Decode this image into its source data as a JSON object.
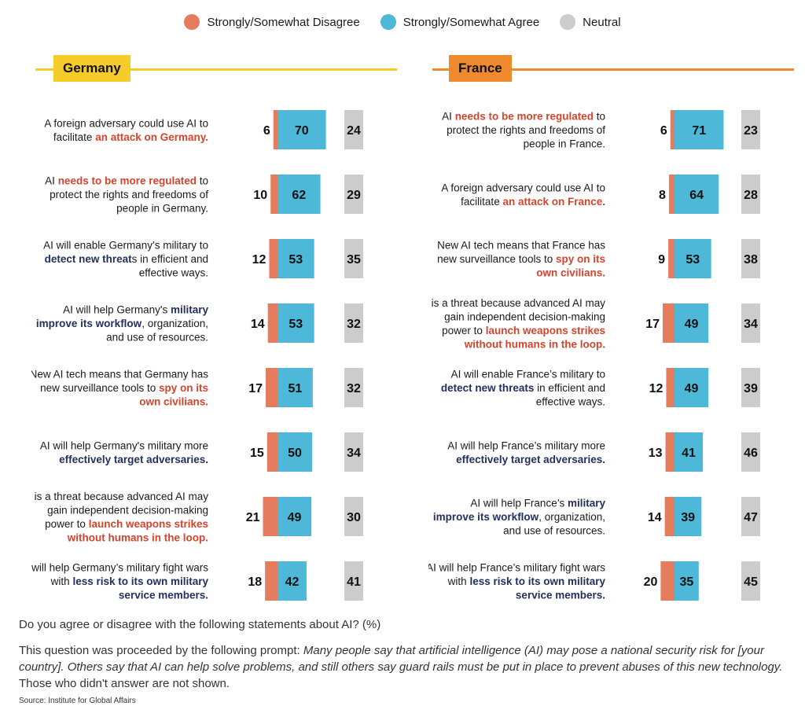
{
  "legend": [
    {
      "label": "Strongly/Somewhat Disagree",
      "color": "#e57c5d"
    },
    {
      "label": "Strongly/Somewhat Agree",
      "color": "#4db8d8"
    },
    {
      "label": "Neutral",
      "color": "#cccccc"
    }
  ],
  "colors": {
    "disagree": "#e57c5d",
    "agree": "#4db8d8",
    "neutral": "#cccccc",
    "highlight_red": "#d4452e",
    "highlight_blue": "#23305e",
    "germany_accent": "#f5cc2a",
    "france_accent": "#f08a2f"
  },
  "chart_data": [
    {
      "type": "bar",
      "title": "Germany",
      "series": [
        "Strongly/Somewhat Disagree",
        "Strongly/Somewhat Agree",
        "Neutral"
      ],
      "rows": [
        {
          "statement": [
            [
              [
                "A foreign adversary could use AI to",
                ""
              ]
            ],
            [
              [
                "facilitate ",
                ""
              ],
              [
                "an attack on Germany.",
                "r"
              ]
            ]
          ],
          "disagree": 6,
          "agree": 70,
          "neutral": 24
        },
        {
          "statement": [
            [
              [
                "AI ",
                ""
              ],
              [
                "needs to be more regulated",
                "r"
              ],
              [
                " to",
                ""
              ]
            ],
            [
              [
                "protect the rights and freedoms of",
                ""
              ]
            ],
            [
              [
                "people in Germany.",
                ""
              ]
            ]
          ],
          "disagree": 10,
          "agree": 62,
          "neutral": 29
        },
        {
          "statement": [
            [
              [
                "AI will enable Germany’s military to",
                ""
              ]
            ],
            [
              [
                "detect new threat",
                "b"
              ],
              [
                "s in efficient and",
                ""
              ]
            ],
            [
              [
                "effective ways.",
                ""
              ]
            ]
          ],
          "disagree": 12,
          "agree": 53,
          "neutral": 35
        },
        {
          "statement": [
            [
              [
                "AI will help Germany's ",
                ""
              ],
              [
                "military",
                "b"
              ]
            ],
            [
              [
                "improve its workflow",
                "b"
              ],
              [
                ", organization,",
                ""
              ]
            ],
            [
              [
                "and use of resources.",
                ""
              ]
            ]
          ],
          "disagree": 14,
          "agree": 53,
          "neutral": 32
        },
        {
          "statement": [
            [
              [
                "New AI tech means that Germany has",
                ""
              ]
            ],
            [
              [
                "new surveillance tools to ",
                ""
              ],
              [
                "spy on its",
                "r"
              ]
            ],
            [
              [
                "own civilians.",
                "r"
              ]
            ]
          ],
          "disagree": 17,
          "agree": 51,
          "neutral": 32
        },
        {
          "statement": [
            [
              [
                "AI will help Germany's military more",
                ""
              ]
            ],
            [
              [
                "effectively target adversaries.",
                "b"
              ]
            ]
          ],
          "disagree": 15,
          "agree": 50,
          "neutral": 34
        },
        {
          "statement": [
            [
              [
                "AI is a threat because advanced AI may",
                ""
              ]
            ],
            [
              [
                "gain independent decision-making",
                ""
              ]
            ],
            [
              [
                "power to ",
                ""
              ],
              [
                "launch weapons strikes",
                "r"
              ]
            ],
            [
              [
                "without humans in the loop.",
                "r"
              ]
            ]
          ],
          "disagree": 21,
          "agree": 49,
          "neutral": 30
        },
        {
          "statement": [
            [
              [
                "AI will help Germany’s military fight wars",
                ""
              ]
            ],
            [
              [
                "with ",
                ""
              ],
              [
                "less risk to its own military",
                "b"
              ]
            ],
            [
              [
                "service members.",
                "b"
              ]
            ]
          ],
          "disagree": 18,
          "agree": 42,
          "neutral": 41
        }
      ]
    },
    {
      "type": "bar",
      "title": "France",
      "series": [
        "Strongly/Somewhat Disagree",
        "Strongly/Somewhat Agree",
        "Neutral"
      ],
      "rows": [
        {
          "statement": [
            [
              [
                "AI ",
                ""
              ],
              [
                "needs to be more regulated",
                "r"
              ],
              [
                " to",
                ""
              ]
            ],
            [
              [
                "protect the rights and freedoms of",
                ""
              ]
            ],
            [
              [
                "people in France.",
                ""
              ]
            ]
          ],
          "disagree": 6,
          "agree": 71,
          "neutral": 23
        },
        {
          "statement": [
            [
              [
                "A foreign adversary could use AI to",
                ""
              ]
            ],
            [
              [
                "facilitate ",
                ""
              ],
              [
                "an attack on France.",
                "r"
              ]
            ]
          ],
          "disagree": 8,
          "agree": 64,
          "neutral": 28
        },
        {
          "statement": [
            [
              [
                "New AI tech means that France has",
                ""
              ]
            ],
            [
              [
                "new surveillance tools to ",
                ""
              ],
              [
                "spy on its",
                "r"
              ]
            ],
            [
              [
                "own civilians.",
                "r"
              ]
            ]
          ],
          "disagree": 9,
          "agree": 53,
          "neutral": 38
        },
        {
          "statement": [
            [
              [
                "AI is a threat because advanced AI may",
                ""
              ]
            ],
            [
              [
                "gain independent decision-making",
                ""
              ]
            ],
            [
              [
                "power to ",
                ""
              ],
              [
                "launch weapons strikes",
                "r"
              ]
            ],
            [
              [
                "without humans in the loop.",
                "r"
              ]
            ]
          ],
          "disagree": 17,
          "agree": 49,
          "neutral": 34
        },
        {
          "statement": [
            [
              [
                "AI will enable France’s military to",
                ""
              ]
            ],
            [
              [
                "detect new threats",
                "b"
              ],
              [
                " in efficient and",
                ""
              ]
            ],
            [
              [
                "effective ways.",
                ""
              ]
            ]
          ],
          "disagree": 12,
          "agree": 49,
          "neutral": 39
        },
        {
          "statement": [
            [
              [
                "AI will help France’s military more",
                ""
              ]
            ],
            [
              [
                "effectively target adversaries.",
                "b"
              ]
            ]
          ],
          "disagree": 13,
          "agree": 41,
          "neutral": 46
        },
        {
          "statement": [
            [
              [
                "AI will help France’s ",
                ""
              ],
              [
                "military",
                "b"
              ]
            ],
            [
              [
                "improve its workflow",
                "b"
              ],
              [
                ", organization,",
                ""
              ]
            ],
            [
              [
                "and use of resources.",
                ""
              ]
            ]
          ],
          "disagree": 14,
          "agree": 39,
          "neutral": 47
        },
        {
          "statement": [
            [
              [
                "AI will help France’s military fight wars",
                ""
              ]
            ],
            [
              [
                "with ",
                ""
              ],
              [
                "less risk to its own military",
                "b"
              ]
            ],
            [
              [
                "service members.",
                "b"
              ]
            ]
          ],
          "disagree": 20,
          "agree": 35,
          "neutral": 45
        }
      ]
    }
  ],
  "footer": {
    "question": "Do you agree or disagree with the following statements about AI? (%)",
    "note_prefix": "This question was proceeded by the following prompt: ",
    "note_italic": "Many people say that artificial intelligence (AI) may pose a national security risk for [your country]. Others say that AI can help solve problems, and still others say guard rails must be put in place to prevent abuses of this new technology.",
    "note_suffix": " Those who didn't answer are not shown.",
    "source": "Source: Institute for Global Affairs"
  }
}
